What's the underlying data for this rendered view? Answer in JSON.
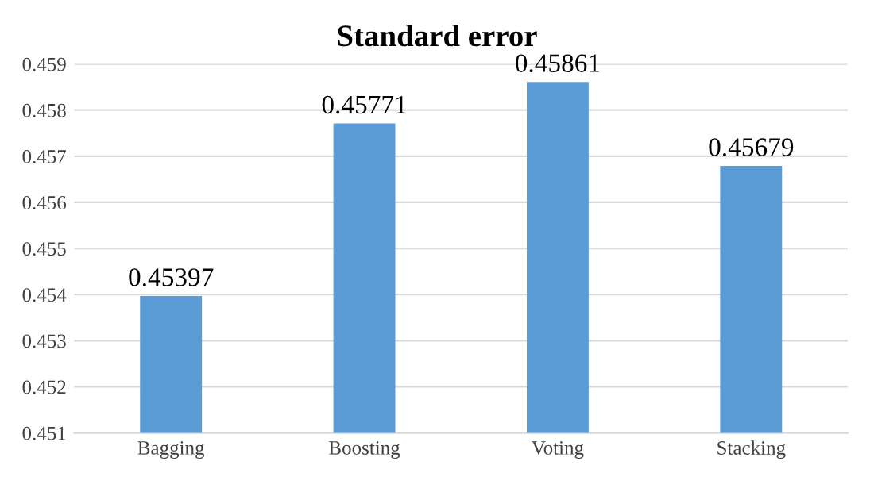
{
  "chart_data": {
    "type": "bar",
    "title": "Standard error",
    "categories": [
      "Bagging",
      "Boosting",
      "Voting",
      "Stacking"
    ],
    "values": [
      0.45397,
      0.45771,
      0.45861,
      0.45679
    ],
    "color": "#5b9bd5",
    "ylim": [
      0.451,
      0.459
    ],
    "yticks": [
      0.451,
      0.452,
      0.453,
      0.454,
      0.455,
      0.456,
      0.457,
      0.458,
      0.459
    ],
    "grid": "y",
    "data_labels": true,
    "legend": false
  }
}
